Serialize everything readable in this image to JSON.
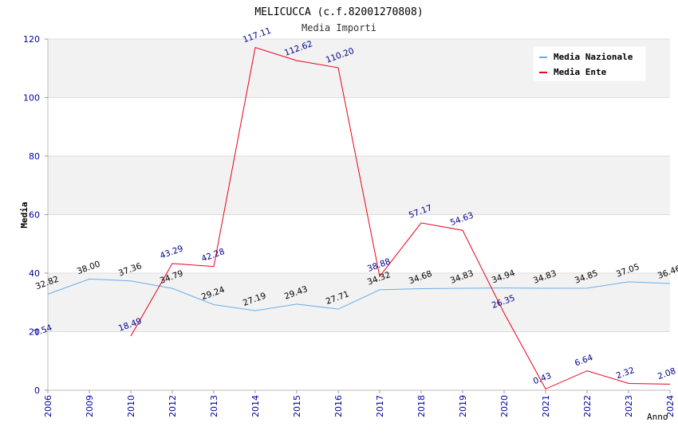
{
  "chart_data": {
    "type": "line",
    "title": "MELICUCCA (c.f.82001270808)",
    "subtitle": "Media Importi",
    "xlabel": "Anno",
    "ylabel": "Media",
    "categories": [
      "2006",
      "2009",
      "2010",
      "2012",
      "2013",
      "2014",
      "2015",
      "2016",
      "2017",
      "2018",
      "2019",
      "2020",
      "2021",
      "2022",
      "2023",
      "2024"
    ],
    "ylim": [
      0,
      120
    ],
    "yticks": [
      0,
      20,
      40,
      60,
      80,
      100,
      120
    ],
    "series": [
      {
        "name": "Media Nazionale",
        "color": "#6aaee8",
        "label_color": "#000000",
        "values": [
          32.82,
          38.0,
          37.36,
          34.79,
          29.24,
          27.19,
          29.43,
          27.71,
          34.32,
          34.68,
          34.83,
          34.94,
          34.83,
          34.85,
          37.05,
          36.46
        ],
        "labels": [
          "32.82",
          "38.00",
          "37.36",
          "34.79",
          "29.24",
          "27.19",
          "29.43",
          "27.71",
          "34.32",
          "34.68",
          "34.83",
          "34.94",
          "34.83",
          "34.85",
          "37.05",
          "36.46"
        ]
      },
      {
        "name": "Media Ente",
        "color": "#e8001c",
        "label_color": "#00008b",
        "values": [
          null,
          null,
          18.49,
          43.29,
          42.28,
          117.11,
          112.62,
          110.2,
          38.88,
          57.17,
          54.63,
          26.35,
          0.43,
          6.64,
          2.32,
          2.08
        ],
        "labels": [
          null,
          null,
          "18.49",
          "43.29",
          "42.28",
          "117.11",
          "112.62",
          "110.20",
          "38.88",
          "57.17",
          "54.63",
          "26.35",
          "0.43",
          "6.64",
          "2.32",
          "2.08"
        ],
        "extra_labels": [
          "7.54"
        ]
      }
    ],
    "legend_position": "top-right",
    "colors": {
      "axis_text": "#0000aa",
      "band": "#f2f2f2",
      "grid": "#dddddd"
    }
  }
}
